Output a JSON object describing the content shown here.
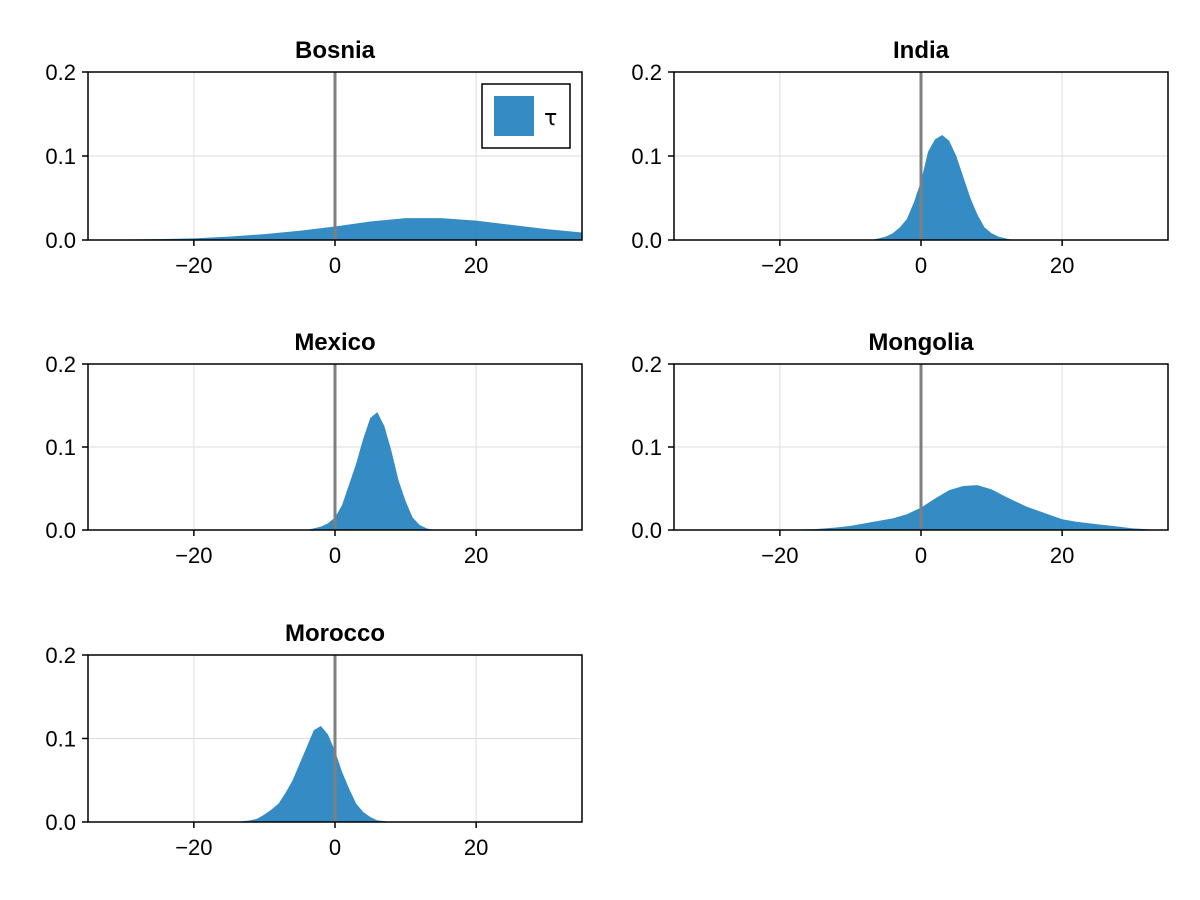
{
  "figure": {
    "title": "",
    "color_fill": "#1f7fbf",
    "fill_opacity": 0.9,
    "color_refline": "#7f7f7f",
    "color_grid": "#dedede"
  },
  "legend": {
    "label": "τ",
    "panel": 0,
    "placement": "top-right"
  },
  "chart_data": [
    {
      "type": "area",
      "title": "Bosnia",
      "xlabel": "",
      "ylabel": "",
      "xlim": [
        -35,
        35
      ],
      "ylim": [
        0,
        0.2
      ],
      "xticks": [
        -20,
        0,
        20
      ],
      "xtick_labels": [
        "−20",
        "0",
        "20"
      ],
      "yticks": [
        0,
        0.1,
        0.2
      ],
      "ytick_labels": [
        "0.0",
        "0.1",
        "0.2"
      ],
      "grid": true,
      "reference_line_x": 0,
      "series": [
        {
          "x": [
            -35,
            -30,
            -25,
            -20,
            -15,
            -10,
            -5,
            0,
            5,
            10,
            15,
            20,
            25,
            30,
            35
          ],
          "y": [
            0.0,
            0.0005,
            0.001,
            0.002,
            0.004,
            0.007,
            0.011,
            0.016,
            0.022,
            0.026,
            0.026,
            0.023,
            0.018,
            0.013,
            0.009
          ]
        }
      ]
    },
    {
      "type": "area",
      "title": "India",
      "xlabel": "",
      "ylabel": "",
      "xlim": [
        -35,
        35
      ],
      "ylim": [
        0,
        0.2
      ],
      "xticks": [
        -20,
        0,
        20
      ],
      "xtick_labels": [
        "−20",
        "0",
        "20"
      ],
      "yticks": [
        0,
        0.1,
        0.2
      ],
      "ytick_labels": [
        "0.0",
        "0.1",
        "0.2"
      ],
      "grid": true,
      "reference_line_x": 0,
      "series": [
        {
          "x": [
            -7,
            -6,
            -5,
            -4,
            -3,
            -2,
            -1,
            0,
            1,
            2,
            3,
            4,
            5,
            6,
            7,
            8,
            9,
            10,
            11,
            12,
            13
          ],
          "y": [
            0.0,
            0.002,
            0.004,
            0.008,
            0.015,
            0.025,
            0.045,
            0.07,
            0.105,
            0.12,
            0.125,
            0.118,
            0.1,
            0.075,
            0.05,
            0.03,
            0.015,
            0.008,
            0.004,
            0.002,
            0.0
          ]
        }
      ]
    },
    {
      "type": "area",
      "title": "Mexico",
      "xlabel": "",
      "ylabel": "",
      "xlim": [
        -35,
        35
      ],
      "ylim": [
        0,
        0.2
      ],
      "xticks": [
        -20,
        0,
        20
      ],
      "xtick_labels": [
        "−20",
        "0",
        "20"
      ],
      "yticks": [
        0,
        0.1,
        0.2
      ],
      "ytick_labels": [
        "0.0",
        "0.1",
        "0.2"
      ],
      "grid": true,
      "reference_line_x": 0,
      "series": [
        {
          "x": [
            -4,
            -3,
            -2,
            -1,
            0,
            1,
            2,
            3,
            4,
            5,
            6,
            7,
            8,
            9,
            10,
            11,
            12,
            13,
            14
          ],
          "y": [
            0.0,
            0.002,
            0.004,
            0.008,
            0.015,
            0.03,
            0.055,
            0.08,
            0.11,
            0.135,
            0.142,
            0.125,
            0.095,
            0.06,
            0.035,
            0.015,
            0.006,
            0.002,
            0.0
          ]
        }
      ]
    },
    {
      "type": "area",
      "title": "Mongolia",
      "xlabel": "",
      "ylabel": "",
      "xlim": [
        -35,
        35
      ],
      "ylim": [
        0,
        0.2
      ],
      "xticks": [
        -20,
        0,
        20
      ],
      "xtick_labels": [
        "−20",
        "0",
        "20"
      ],
      "yticks": [
        0,
        0.1,
        0.2
      ],
      "ytick_labels": [
        "0.0",
        "0.1",
        "0.2"
      ],
      "grid": true,
      "reference_line_x": 0,
      "series": [
        {
          "x": [
            -20,
            -15,
            -12,
            -10,
            -8,
            -6,
            -4,
            -2,
            0,
            2,
            4,
            6,
            8,
            10,
            12,
            15,
            18,
            20,
            22,
            25,
            28,
            30,
            33,
            35
          ],
          "y": [
            0.0,
            0.001,
            0.003,
            0.005,
            0.008,
            0.011,
            0.014,
            0.019,
            0.027,
            0.038,
            0.048,
            0.053,
            0.054,
            0.049,
            0.04,
            0.028,
            0.019,
            0.013,
            0.01,
            0.007,
            0.004,
            0.002,
            0.0005,
            0.0
          ]
        }
      ]
    },
    {
      "type": "area",
      "title": "Morocco",
      "xlabel": "",
      "ylabel": "",
      "xlim": [
        -35,
        35
      ],
      "ylim": [
        0,
        0.2
      ],
      "xticks": [
        -20,
        0,
        20
      ],
      "xtick_labels": [
        "−20",
        "0",
        "20"
      ],
      "yticks": [
        0,
        0.1,
        0.2
      ],
      "ytick_labels": [
        "0.0",
        "0.1",
        "0.2"
      ],
      "grid": true,
      "reference_line_x": 0,
      "series": [
        {
          "x": [
            -14,
            -13,
            -12,
            -11,
            -10,
            -9,
            -8,
            -7,
            -6,
            -5,
            -4,
            -3,
            -2,
            -1,
            0,
            1,
            2,
            3,
            4,
            5,
            6,
            7,
            8
          ],
          "y": [
            0.0,
            0.001,
            0.002,
            0.004,
            0.009,
            0.015,
            0.022,
            0.035,
            0.05,
            0.07,
            0.09,
            0.11,
            0.115,
            0.105,
            0.085,
            0.06,
            0.04,
            0.022,
            0.012,
            0.006,
            0.002,
            0.001,
            0.0
          ]
        }
      ]
    }
  ]
}
